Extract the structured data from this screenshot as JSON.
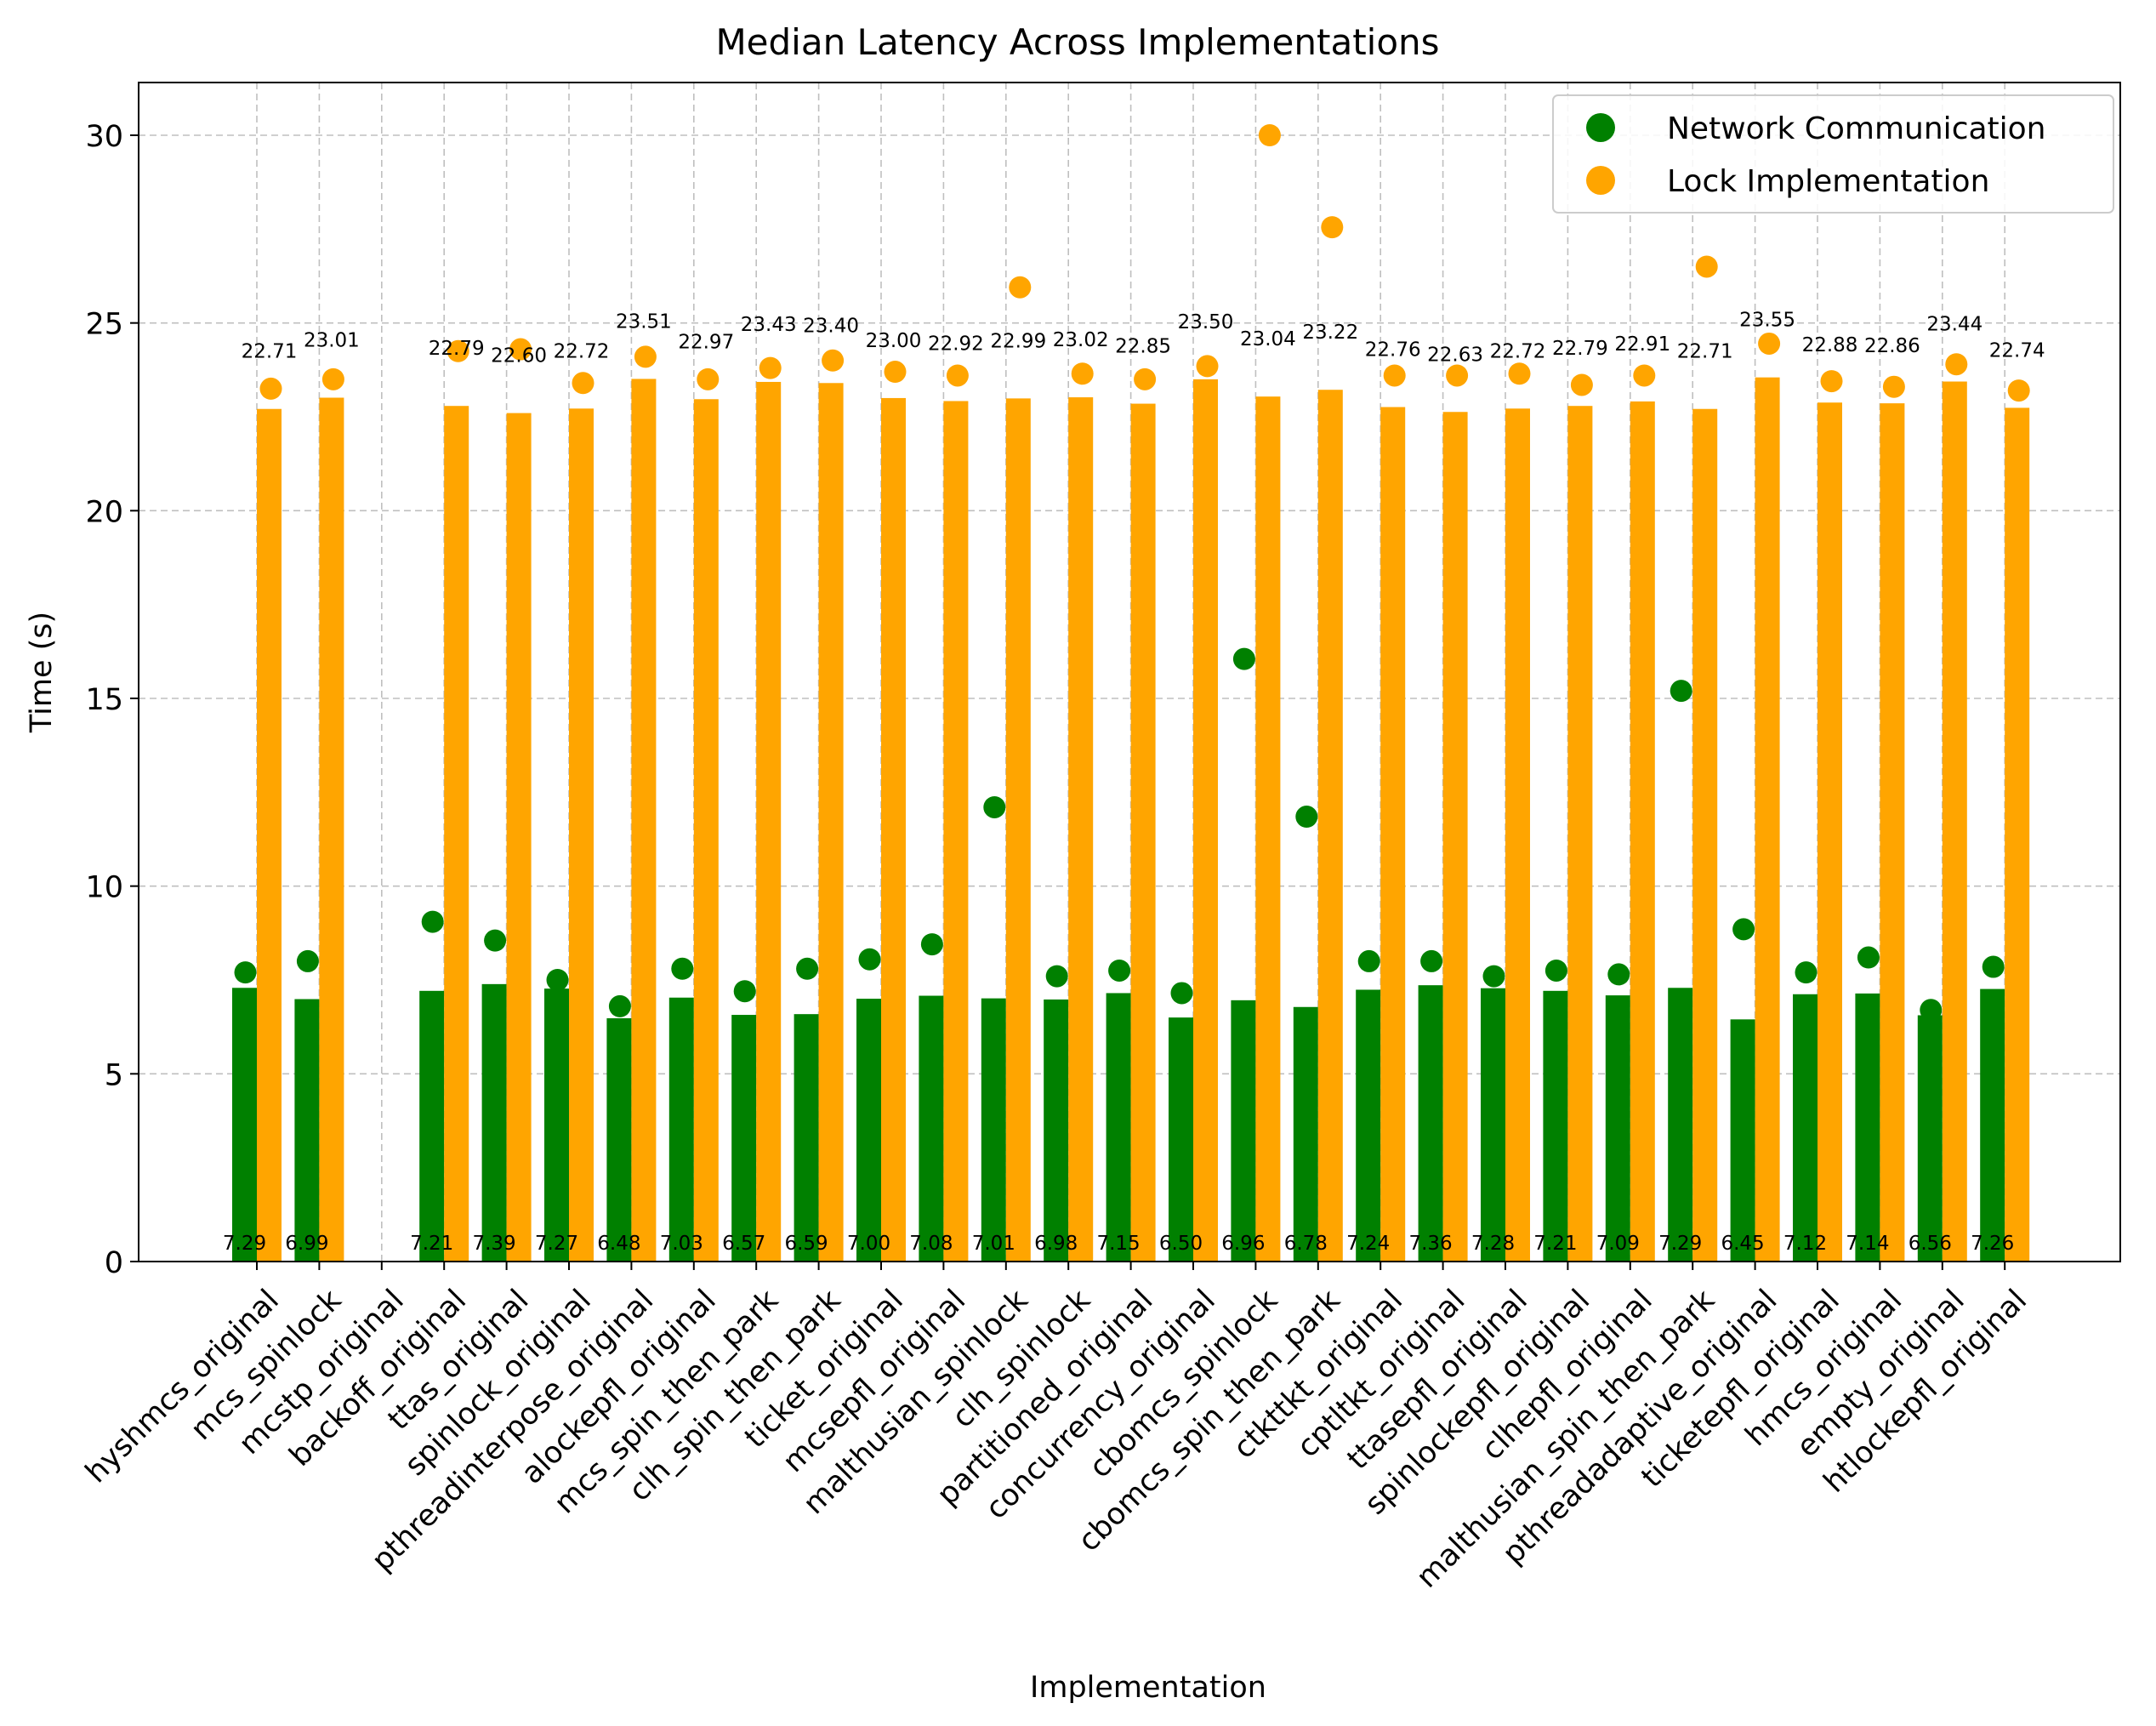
{
  "chart_data": {
    "type": "bar",
    "title": "Median Latency Across Implementations",
    "xlabel": "Implementation",
    "ylabel": "Time (s)",
    "ylim": [
      0,
      31.5
    ],
    "yticks": [
      0,
      5,
      10,
      15,
      20,
      25,
      30
    ],
    "grid": true,
    "legend_position": "top-right",
    "categories": [
      "hyshmcs_original",
      "mcs_spinlock",
      "mcstp_original",
      "backoff_original",
      "ttas_original",
      "spinlock_original",
      "pthreadinterpose_original",
      "alockepfl_original",
      "mcs_spin_then_park",
      "clh_spin_then_park",
      "ticket_original",
      "mcsepfl_original",
      "malthusian_spinlock",
      "clh_spinlock",
      "partitioned_original",
      "concurrency_original",
      "cbomcs_spinlock",
      "cbomcs_spin_then_park",
      "ctkttkt_original",
      "cptltkt_original",
      "ttasepfl_original",
      "spinlockepfl_original",
      "clhepfl_original",
      "malthusian_spin_then_park",
      "pthreadadaptive_original",
      "ticketepfl_original",
      "hmcs_original",
      "empty_original",
      "htlockepfl_original"
    ],
    "series": [
      {
        "name": "Network Communication",
        "color": "#008000",
        "bar_values": [
          7.29,
          6.99,
          null,
          7.21,
          7.39,
          7.27,
          6.48,
          7.03,
          6.57,
          6.59,
          7.0,
          7.08,
          7.01,
          6.98,
          7.15,
          6.5,
          6.96,
          6.78,
          7.24,
          7.36,
          7.28,
          7.21,
          7.09,
          7.29,
          6.45,
          7.12,
          7.14,
          6.56,
          7.26
        ],
        "bar_labels": [
          "7.29",
          "6.99",
          "",
          "7.21",
          "7.39",
          "7.27",
          "6.48",
          "7.03",
          "6.57",
          "6.59",
          "7.00",
          "7.08",
          "7.01",
          "6.98",
          "7.15",
          "6.50",
          "6.96",
          "6.78",
          "7.24",
          "7.36",
          "7.28",
          "7.21",
          "7.09",
          "7.29",
          "6.45",
          "7.12",
          "7.14",
          "6.56",
          "7.26"
        ],
        "point_values": [
          7.7,
          8.0,
          null,
          9.05,
          8.55,
          7.5,
          6.8,
          7.8,
          7.2,
          7.8,
          8.05,
          8.45,
          12.1,
          7.6,
          7.75,
          7.15,
          16.05,
          11.85,
          8.0,
          8.0,
          7.6,
          7.75,
          7.65,
          15.2,
          8.85,
          7.7,
          8.1,
          6.7,
          7.85
        ]
      },
      {
        "name": "Lock Implementation",
        "color": "#FFA500",
        "bar_values": [
          22.71,
          23.01,
          null,
          22.79,
          22.6,
          22.72,
          23.51,
          22.97,
          23.43,
          23.4,
          23.0,
          22.92,
          22.99,
          23.02,
          22.85,
          23.5,
          23.04,
          23.22,
          22.76,
          22.63,
          22.72,
          22.79,
          22.91,
          22.71,
          23.55,
          22.88,
          22.86,
          23.44,
          22.74
        ],
        "bar_labels": [
          "22.71",
          "23.01",
          "",
          "22.79",
          "22.60",
          "22.72",
          "23.51",
          "22.97",
          "23.43",
          "23.40",
          "23.00",
          "22.92",
          "22.99",
          "23.02",
          "22.85",
          "23.50",
          "23.04",
          "23.22",
          "22.76",
          "22.63",
          "22.72",
          "22.79",
          "22.91",
          "22.71",
          "23.55",
          "22.88",
          "22.86",
          "23.44",
          "22.74"
        ],
        "point_values": [
          23.25,
          23.5,
          null,
          24.25,
          24.3,
          23.4,
          24.1,
          23.5,
          23.8,
          24.0,
          23.7,
          23.6,
          25.95,
          23.65,
          23.5,
          23.85,
          30.0,
          27.55,
          23.6,
          23.6,
          23.65,
          23.35,
          23.6,
          26.5,
          24.45,
          23.45,
          23.3,
          23.9,
          23.2
        ]
      }
    ]
  }
}
